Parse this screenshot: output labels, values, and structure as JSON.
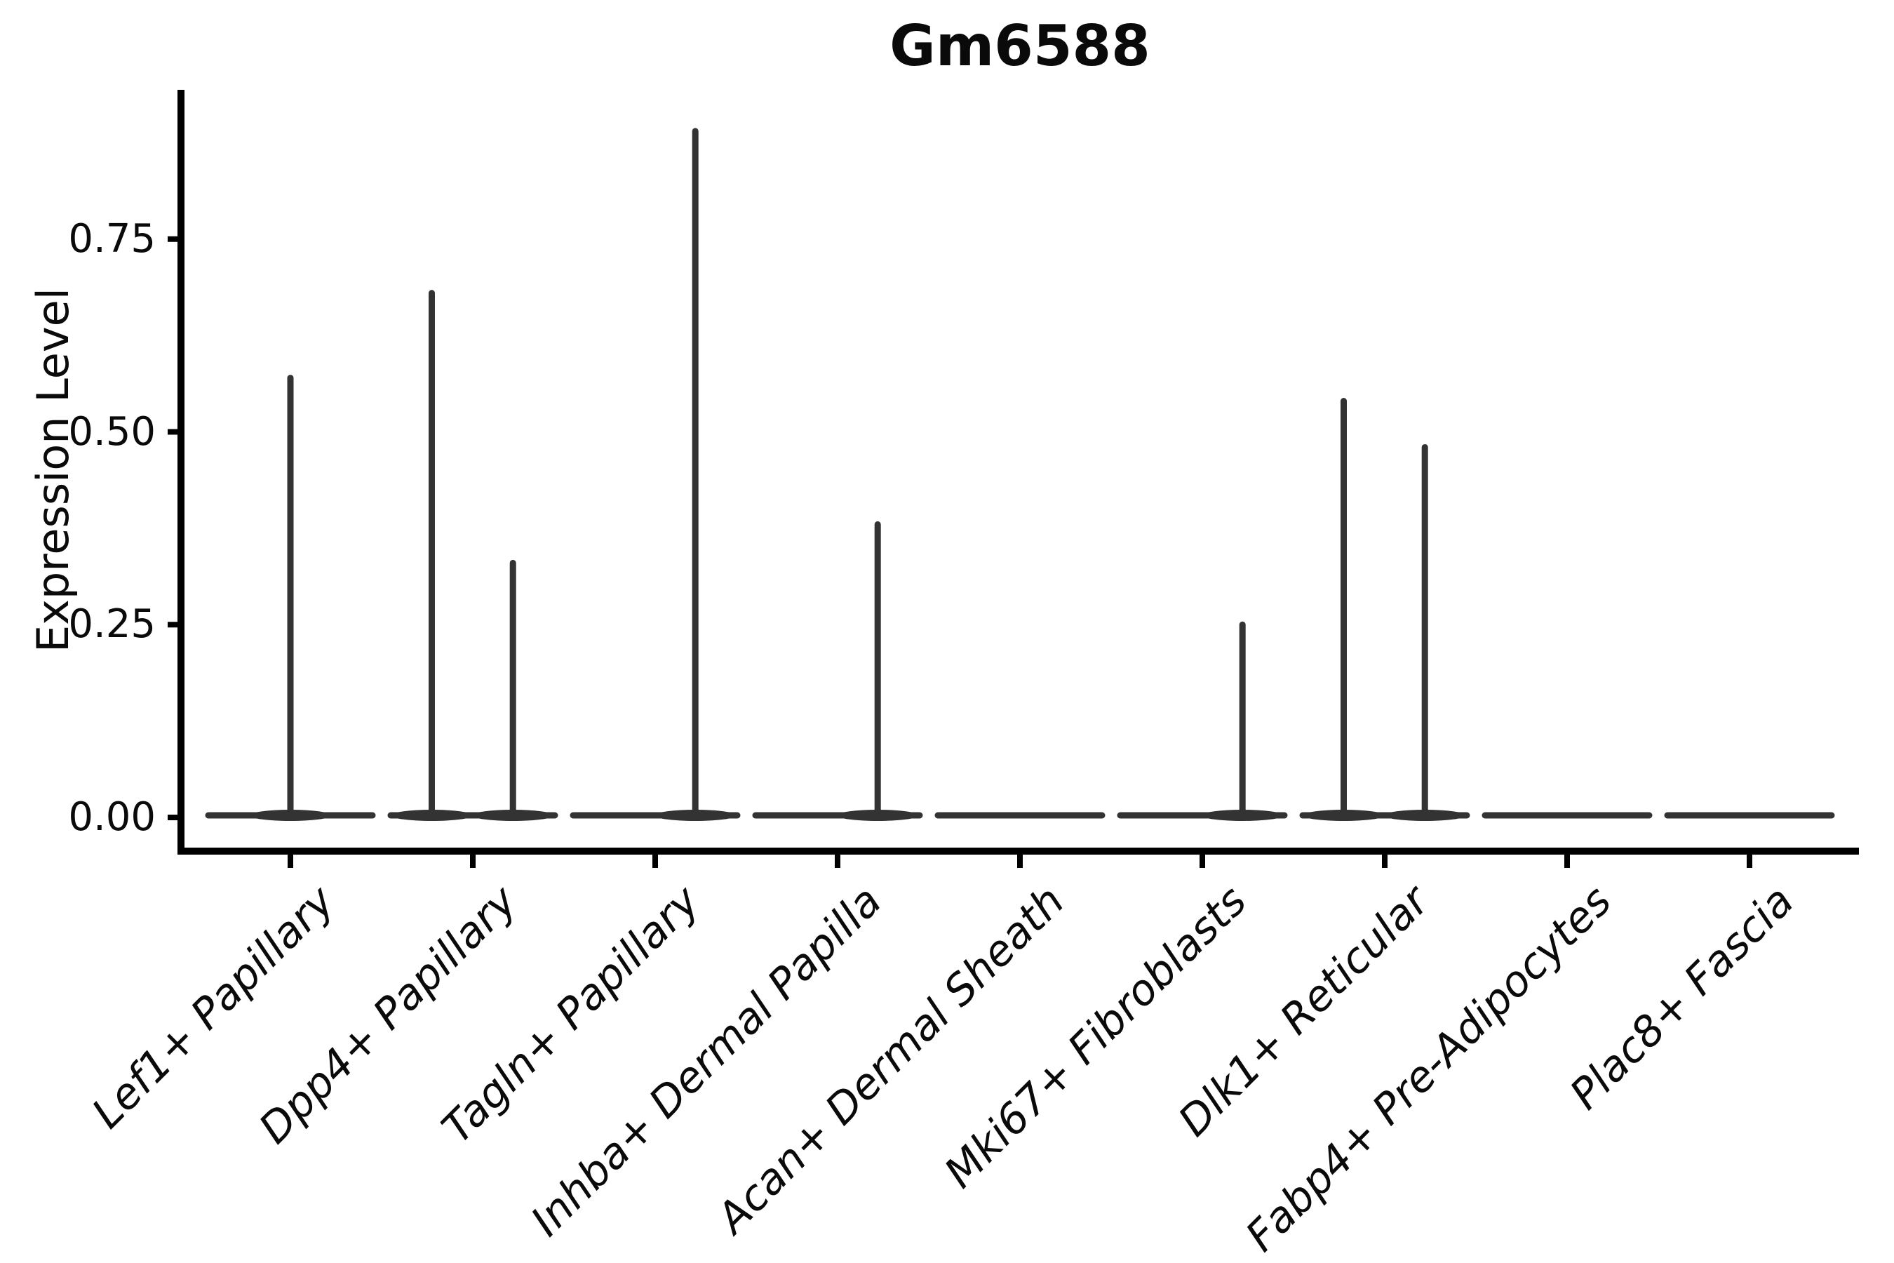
{
  "figure": {
    "title": "Gm6588",
    "background": "#ffffff",
    "y_axis": {
      "label": "Expression Level",
      "tick_labels": [
        "0.00",
        "0.25",
        "0.50",
        "0.75"
      ],
      "tick_values": [
        0,
        0.25,
        0.5,
        0.75
      ]
    },
    "colors": {
      "violin": "#333333",
      "axis": "#000000",
      "text": "#0a0a0a"
    }
  },
  "chart_data": {
    "type": "violin",
    "title": "Gm6588",
    "xlabel": "",
    "ylabel": "Expression Level",
    "grid": false,
    "legend": false,
    "ylim": [
      -0.05,
      0.94
    ],
    "yticks": [
      0,
      0.25,
      0.5,
      0.75
    ],
    "ytick_labels": [
      "0.00",
      "0.25",
      "0.50",
      "0.75"
    ],
    "categories": [
      "Lef1+ Papillary",
      "Dpp4+ Papillary",
      "Tagln+ Papillary",
      "Inhba+ Dermal Papilla",
      "Acan+ Dermal Sheath",
      "Mki67+ Fibroblasts",
      "Dlk1+ Reticular",
      "Fabp4+ Pre-Adipocytes",
      "Plac8+ Fascia"
    ],
    "violins": [
      {
        "category": "Lef1+ Papillary",
        "baseline_at_zero": true,
        "spikes": [
          {
            "offset_frac": 0.0,
            "max": 0.57
          }
        ]
      },
      {
        "category": "Dpp4+ Papillary",
        "baseline_at_zero": true,
        "spikes": [
          {
            "offset_frac": -0.225,
            "max": 0.68
          },
          {
            "offset_frac": 0.22,
            "max": 0.33
          }
        ]
      },
      {
        "category": "Tagln+ Papillary",
        "baseline_at_zero": true,
        "spikes": [
          {
            "offset_frac": 0.22,
            "max": 0.89
          }
        ]
      },
      {
        "category": "Inhba+ Dermal Papilla",
        "baseline_at_zero": true,
        "spikes": [
          {
            "offset_frac": 0.22,
            "max": 0.38
          }
        ]
      },
      {
        "category": "Acan+ Dermal Sheath",
        "baseline_at_zero": true,
        "spikes": []
      },
      {
        "category": "Mki67+ Fibroblasts",
        "baseline_at_zero": true,
        "spikes": [
          {
            "offset_frac": 0.22,
            "max": 0.25
          }
        ]
      },
      {
        "category": "Dlk1+ Reticular",
        "baseline_at_zero": true,
        "spikes": [
          {
            "offset_frac": -0.225,
            "max": 0.54
          },
          {
            "offset_frac": 0.22,
            "max": 0.48
          }
        ]
      },
      {
        "category": "Fabp4+ Pre-Adipocytes",
        "baseline_at_zero": true,
        "spikes": []
      },
      {
        "category": "Plac8+ Fascia",
        "baseline_at_zero": true,
        "spikes": []
      }
    ]
  }
}
